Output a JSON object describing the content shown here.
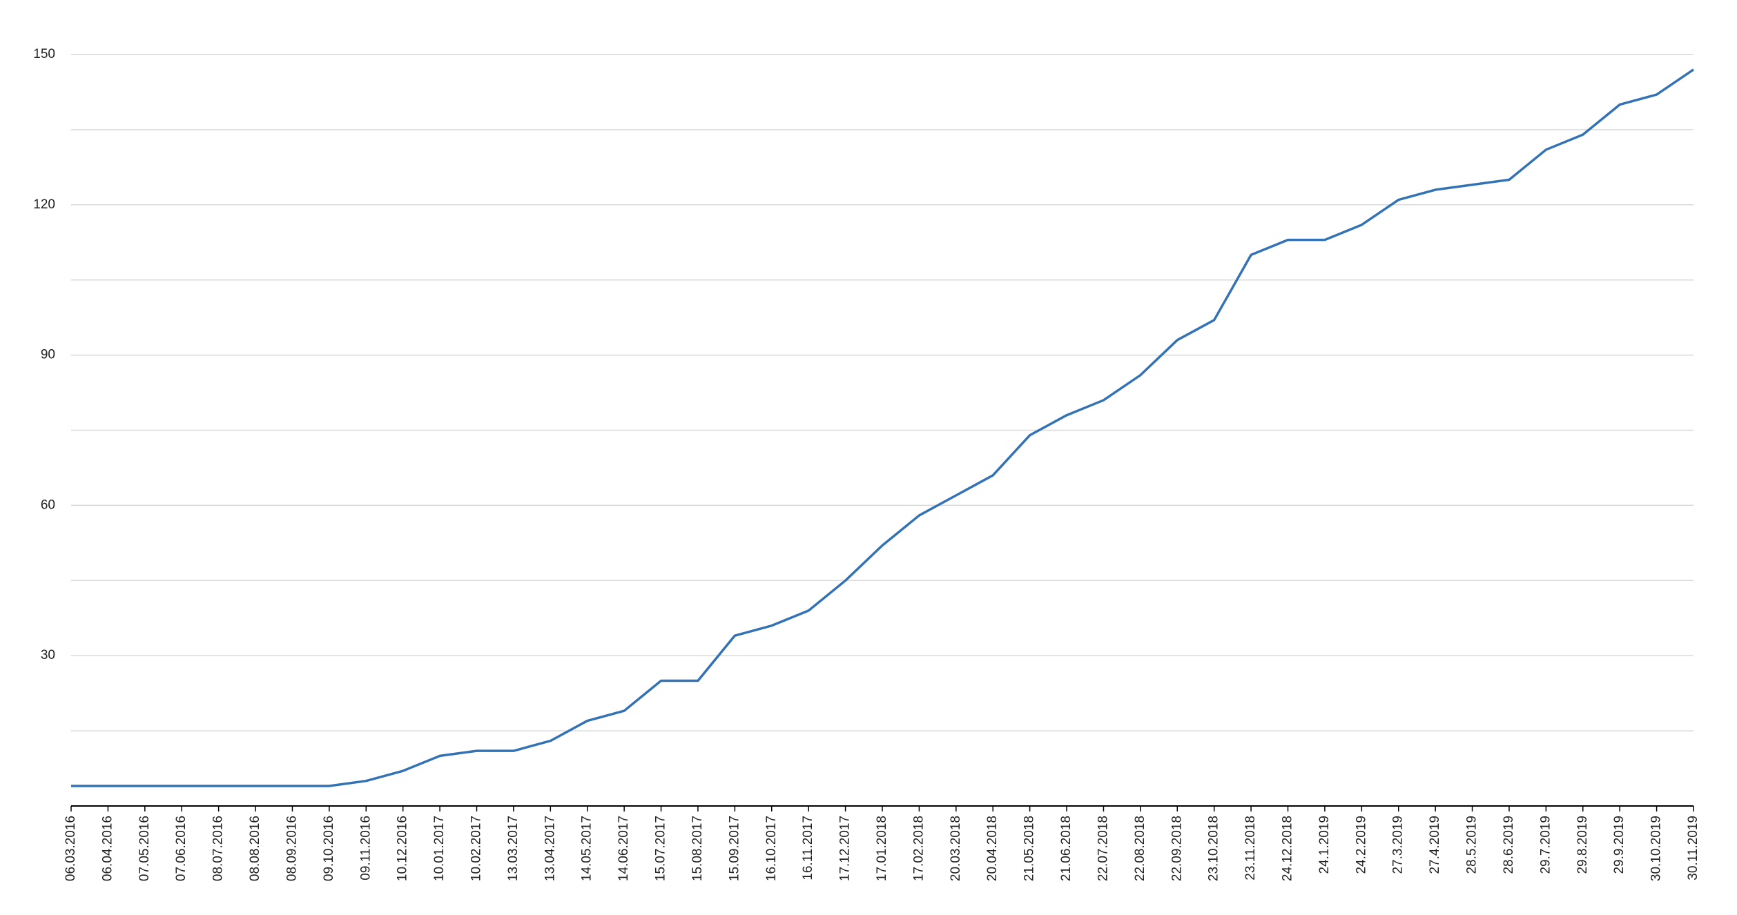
{
  "chart_data": {
    "type": "line",
    "categories": [
      "06.03.2016",
      "06.04.2016",
      "07.05.2016",
      "07.06.2016",
      "08.07.2016",
      "08.08.2016",
      "08.09.2016",
      "09.10.2016",
      "09.11.2016",
      "10.12.2016",
      "10.01.2017",
      "10.02.2017",
      "13.03.2017",
      "13.04.2017",
      "14.05.2017",
      "14.06.2017",
      "15.07.2017",
      "15.08.2017",
      "15.09.2017",
      "16.10.2017",
      "16.11.2017",
      "17.12.2017",
      "17.01.2018",
      "17.02.2018",
      "20.03.2018",
      "20.04.2018",
      "21.05.2018",
      "21.06.2018",
      "22.07.2018",
      "22.08.2018",
      "22.09.2018",
      "23.10.2018",
      "23.11.2018",
      "24.12.2018",
      "24.1.2019",
      "24.2.2019",
      "27.3.2019",
      "27.4.2019",
      "28.5.2019",
      "28.6.2019",
      "29.7.2019",
      "29.8.2019",
      "29.9.2019",
      "30.10.2019",
      "30.11.2019"
    ],
    "series": [
      {
        "color": "#3272b5",
        "values": [
          4,
          4,
          4,
          4,
          4,
          4,
          4,
          4,
          5,
          7,
          10,
          11,
          11,
          13,
          17,
          19,
          25,
          25,
          34,
          36,
          39,
          45,
          52,
          58,
          62,
          66,
          74,
          78,
          81,
          86,
          93,
          97,
          110,
          113,
          113,
          116,
          121,
          123,
          124,
          125,
          131,
          134,
          140,
          142,
          147
        ]
      }
    ],
    "ylim": [
      0,
      150
    ],
    "yticks": [
      30,
      60,
      90,
      120,
      150
    ],
    "minor_yticks": [
      15,
      45,
      75,
      105,
      135
    ],
    "grid": true
  }
}
